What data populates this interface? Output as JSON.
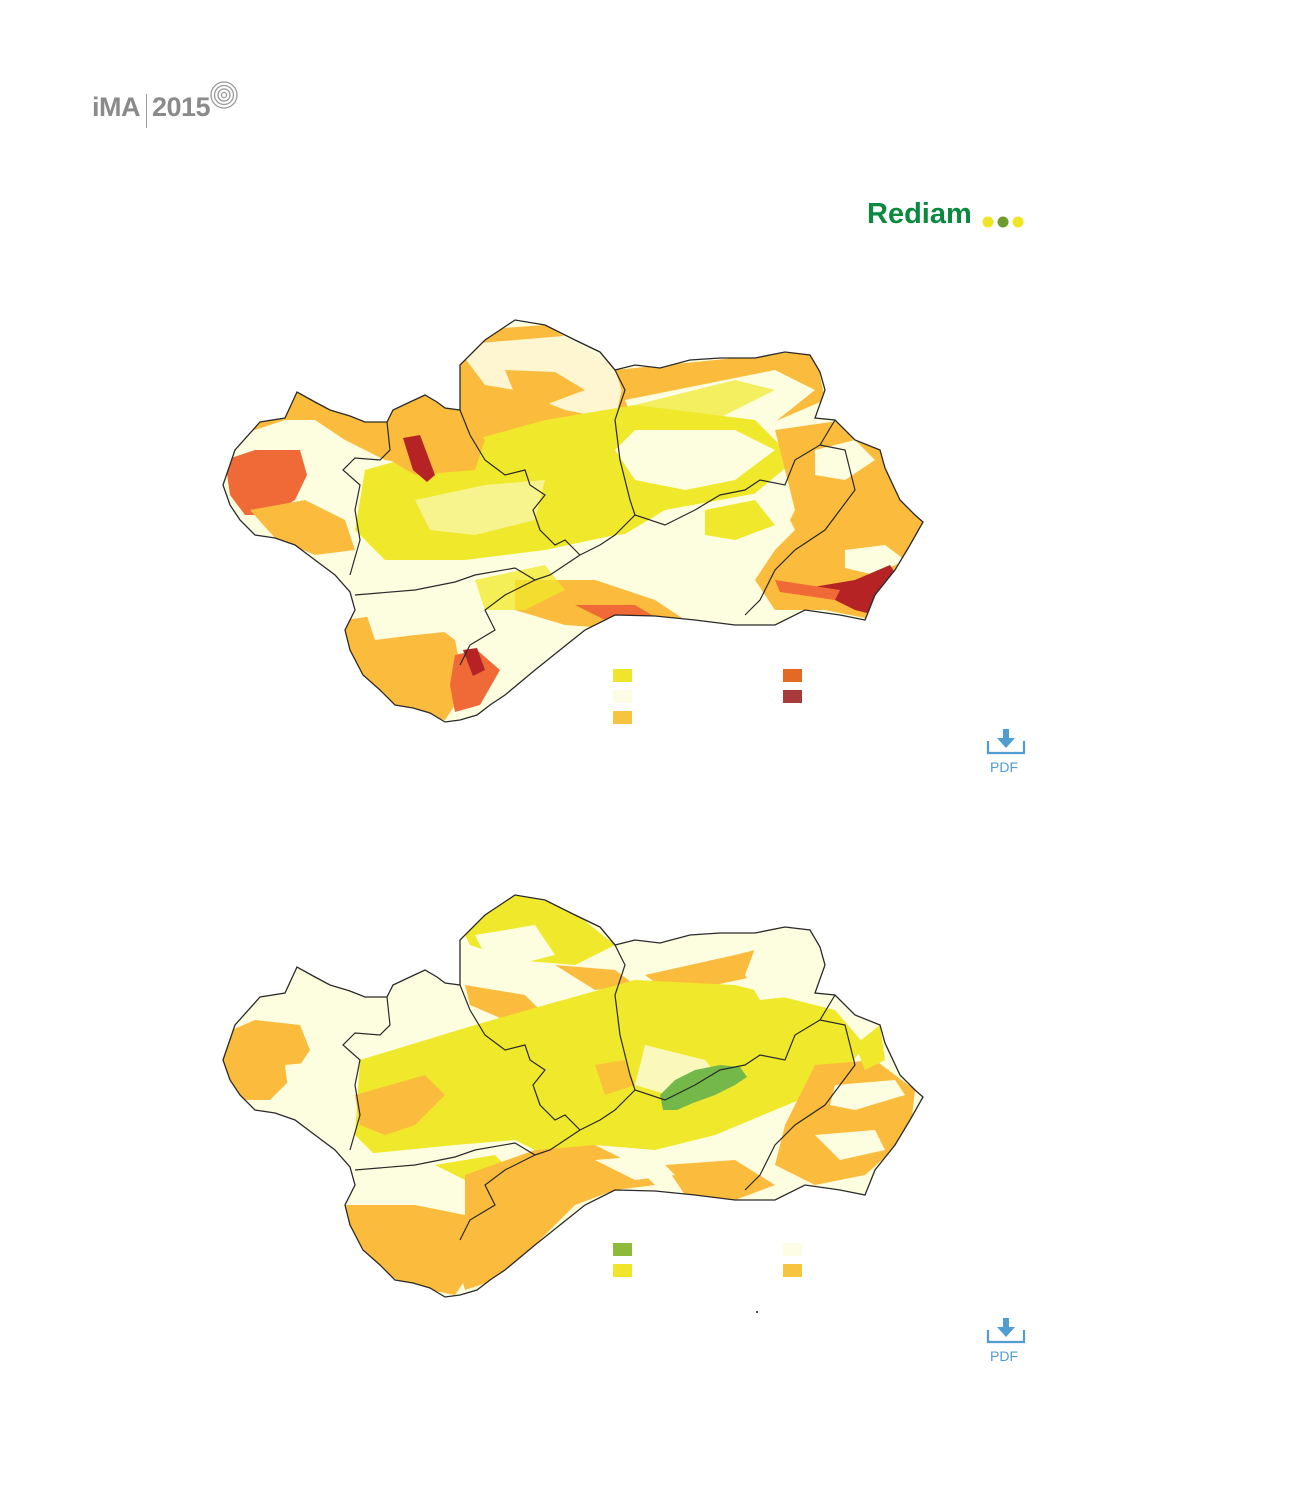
{
  "header": {
    "logo_ima_text": "iMA",
    "logo_year": "2015",
    "rediam_text": "Rediam",
    "rediam_dot_colors": [
      "#f0e524",
      "#6f9a2e",
      "#f0e524"
    ]
  },
  "colors": {
    "yellow": "#f0e82a",
    "cream": "#fdfde0",
    "light_orange": "#fbbb3c",
    "orange": "#ef6a36",
    "dark_red": "#b52325",
    "green": "#74b84a",
    "border": "#2a2a2a",
    "pdf_blue": "#4f9dd2"
  },
  "map1": {
    "legend": [
      {
        "color": "#f0e52a"
      },
      {
        "color": "#fdfde6"
      },
      {
        "color": "#f7c440"
      },
      {
        "color": "#e36a24"
      },
      {
        "color": "#a83a3a"
      }
    ],
    "pdf_label": "PDF"
  },
  "map2": {
    "legend": [
      {
        "color": "#8dba3a"
      },
      {
        "color": "#f0e52a"
      },
      {
        "color": "#fdfde6"
      },
      {
        "color": "#f7c440"
      }
    ],
    "pdf_label": "PDF"
  }
}
